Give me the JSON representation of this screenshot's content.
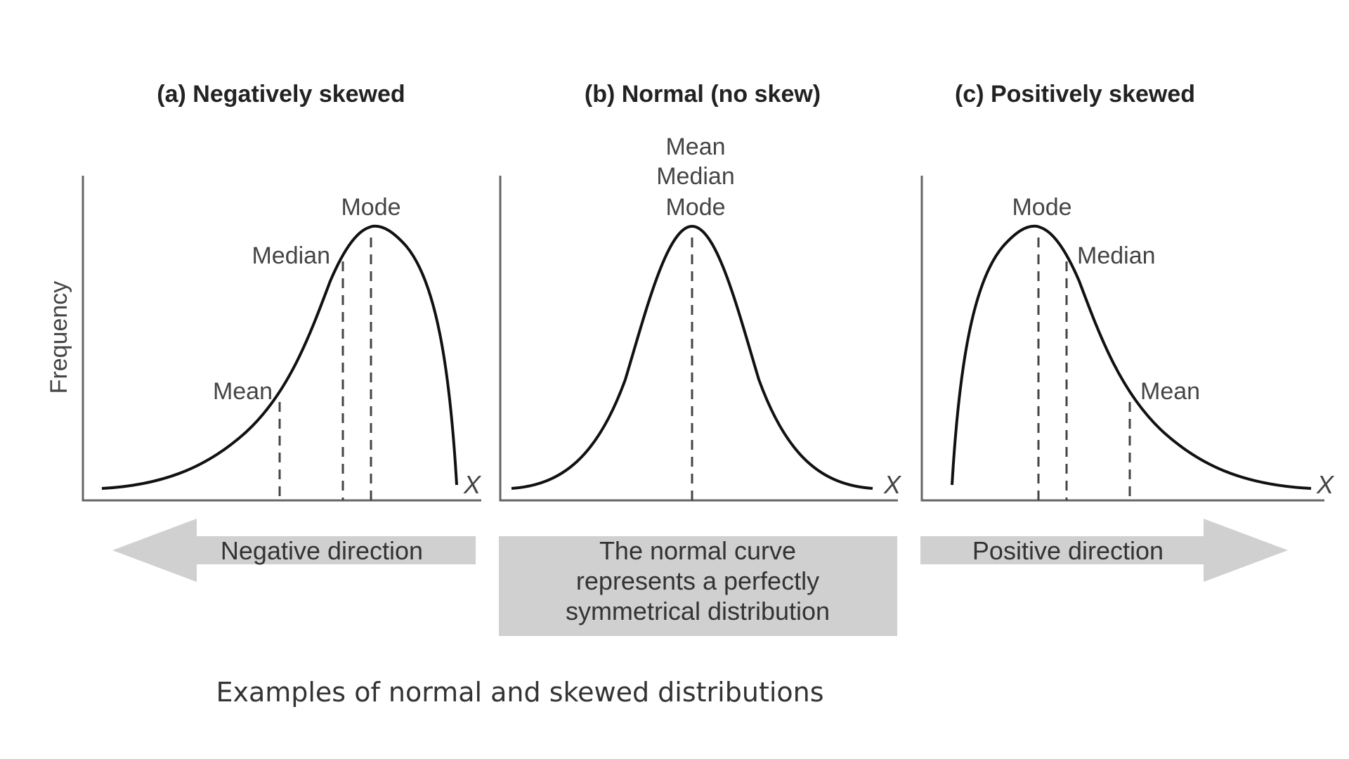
{
  "y_axis_label": "Frequency",
  "x_axis_label": "X",
  "panels": [
    {
      "title": "(a) Negatively skewed",
      "labels": {
        "mode": "Mode",
        "median": "Median",
        "mean": "Mean"
      }
    },
    {
      "title": "(b) Normal (no skew)",
      "labels": {
        "mean": "Mean",
        "median": "Median",
        "mode": "Mode"
      }
    },
    {
      "title": "(c) Positively skewed",
      "labels": {
        "mode": "Mode",
        "median": "Median",
        "mean": "Mean"
      }
    }
  ],
  "arrows": {
    "negative": "Negative direction",
    "positive": "Positive direction",
    "arrow_color": "#d0d0d0"
  },
  "center_box": {
    "lines": [
      "The normal curve",
      "represents a perfectly",
      "symmetrical distribution"
    ],
    "color": "#d0d0d0"
  },
  "caption": "Examples of normal and skewed distributions"
}
